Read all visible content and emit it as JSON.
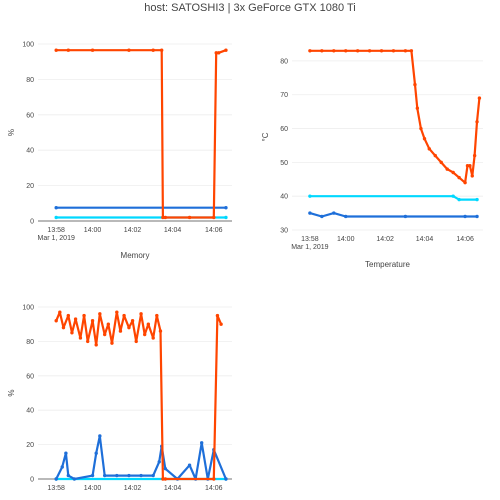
{
  "page": {
    "title": "host: SATOSHI3  |  3x GeForce GTX 1080 Ti"
  },
  "colors": {
    "gpu0": "#ff4500",
    "gpu1": "#1e6fd9",
    "gpu2": "#00d8ff"
  },
  "chart_data": [
    {
      "type": "line",
      "title": "",
      "xlabel": "Memory",
      "ylabel": "%",
      "xlim": [
        "13:57.5",
        "14:06.8"
      ],
      "ylim": [
        0,
        100
      ],
      "y_ticks": [
        "0",
        "20",
        "40",
        "60",
        "80",
        "100"
      ],
      "x_ticks": [
        "13:58",
        "14:00",
        "14:02",
        "14:04",
        "14:06"
      ],
      "x_first_tick_date": "Mar 1, 2019",
      "grid": true,
      "series": [
        {
          "color": "#ff4500",
          "marker": true,
          "x": [
            13.97,
            13.98,
            14.0,
            14.03,
            14.05,
            14.057,
            14.058,
            14.06,
            14.08,
            14.1,
            14.102,
            14.104,
            14.11
          ],
          "y": [
            96.5,
            96.5,
            96.5,
            96.5,
            96.5,
            96.5,
            2,
            2,
            2,
            2,
            95,
            95,
            96.5
          ]
        },
        {
          "color": "#1e6fd9",
          "marker": true,
          "x": [
            13.97,
            14.11
          ],
          "y": [
            7.5,
            7.5
          ]
        },
        {
          "color": "#00d8ff",
          "marker": true,
          "x": [
            13.97,
            14.11
          ],
          "y": [
            2,
            2
          ]
        }
      ]
    },
    {
      "type": "line",
      "title": "",
      "xlabel": "Temperature",
      "ylabel": "°C",
      "ylim": [
        30,
        85
      ],
      "y_ticks": [
        "30",
        "40",
        "50",
        "60",
        "70",
        "80"
      ],
      "x_ticks": [
        "13:58",
        "14:00",
        "14:02",
        "14:04",
        "14:06"
      ],
      "x_first_tick_date": "Mar 1, 2019",
      "grid": true,
      "series": [
        {
          "color": "#ff4500",
          "marker": true,
          "x": [
            13.97,
            13.98,
            13.99,
            14.0,
            14.01,
            14.02,
            14.03,
            14.04,
            14.05,
            14.055,
            14.058,
            14.06,
            14.063,
            14.066,
            14.07,
            14.075,
            14.08,
            14.085,
            14.09,
            14.095,
            14.1,
            14.102,
            14.104,
            14.106,
            14.108,
            14.11,
            14.112
          ],
          "y": [
            83,
            83,
            83,
            83,
            83,
            83,
            83,
            83,
            83,
            83,
            73,
            66,
            60,
            57,
            54,
            52,
            50,
            48,
            47,
            45.5,
            44,
            49,
            49,
            46,
            52,
            62,
            69
          ]
        },
        {
          "color": "#1e6fd9",
          "marker": true,
          "x": [
            13.97,
            13.98,
            13.99,
            14.0,
            14.05,
            14.1,
            14.11
          ],
          "y": [
            35,
            34,
            35,
            34,
            34,
            34,
            34
          ]
        },
        {
          "color": "#00d8ff",
          "marker": true,
          "x": [
            13.97,
            14.09,
            14.095,
            14.11
          ],
          "y": [
            40,
            40,
            39,
            39
          ]
        }
      ]
    },
    {
      "type": "line",
      "title": "",
      "xlabel": "",
      "ylabel": "%",
      "ylim": [
        0,
        100
      ],
      "y_ticks": [
        "0",
        "20",
        "40",
        "60",
        "80",
        "100"
      ],
      "x_ticks": [
        "13:58",
        "14:00",
        "14:02",
        "14:04",
        "14:06"
      ],
      "grid": true,
      "series": [
        {
          "color": "#ff4500",
          "marker": true,
          "x": [
            13.97,
            13.973,
            13.976,
            13.98,
            13.983,
            13.986,
            13.99,
            13.993,
            13.996,
            14.0,
            14.003,
            14.006,
            14.01,
            14.013,
            14.016,
            14.02,
            14.023,
            14.026,
            14.03,
            14.033,
            14.036,
            14.04,
            14.043,
            14.046,
            14.05,
            14.053,
            14.056,
            14.058,
            14.06,
            14.1,
            14.103,
            14.106
          ],
          "y": [
            92,
            97,
            88,
            95,
            85,
            93,
            82,
            95,
            80,
            92,
            78,
            96,
            84,
            90,
            79,
            97,
            86,
            95,
            88,
            92,
            80,
            96,
            84,
            90,
            82,
            95,
            86,
            0,
            0,
            0,
            95,
            90
          ]
        },
        {
          "color": "#1e6fd9",
          "marker": true,
          "x": [
            13.97,
            13.975,
            13.978,
            13.98,
            13.985,
            14.0,
            14.003,
            14.006,
            14.01,
            14.02,
            14.03,
            14.04,
            14.05,
            14.055,
            14.057,
            14.06,
            14.07,
            14.08,
            14.085,
            14.09,
            14.095,
            14.1,
            14.11
          ],
          "y": [
            0,
            7,
            15,
            2,
            0,
            2,
            15,
            25,
            2,
            2,
            2,
            2,
            2,
            10,
            19,
            6,
            0,
            8,
            0,
            21,
            0,
            17,
            0
          ]
        },
        {
          "color": "#00d8ff",
          "marker": true,
          "x": [
            13.97,
            14.11
          ],
          "y": [
            0,
            0
          ]
        }
      ]
    }
  ]
}
